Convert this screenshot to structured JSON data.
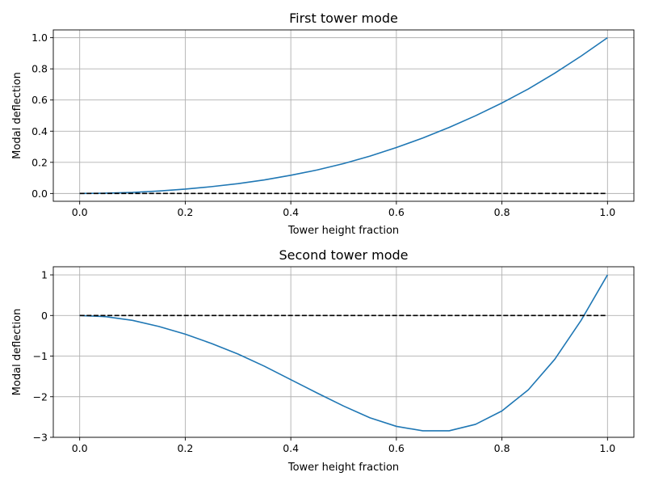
{
  "chart_data": [
    {
      "type": "line",
      "title": "First tower mode",
      "xlabel": "Tower height fraction",
      "ylabel": "Modal deflection",
      "xlim": [
        -0.05,
        1.05
      ],
      "ylim": [
        -0.05,
        1.05
      ],
      "xticks": [
        0.0,
        0.2,
        0.4,
        0.6,
        0.8,
        1.0
      ],
      "xtick_labels": [
        "0.0",
        "0.2",
        "0.4",
        "0.6",
        "0.8",
        "1.0"
      ],
      "yticks": [
        0.0,
        0.2,
        0.4,
        0.6,
        0.8,
        1.0
      ],
      "ytick_labels": [
        "0.0",
        "0.2",
        "0.4",
        "0.6",
        "0.8",
        "1.0"
      ],
      "grid": true,
      "series": [
        {
          "color": "#1f77b4",
          "style": "solid",
          "x": [
            0.0,
            0.05,
            0.1,
            0.15,
            0.2,
            0.25,
            0.3,
            0.35,
            0.4,
            0.45,
            0.5,
            0.55,
            0.6,
            0.65,
            0.7,
            0.75,
            0.8,
            0.85,
            0.9,
            0.95,
            1.0
          ],
          "y": [
            0.0,
            0.002,
            0.007,
            0.016,
            0.028,
            0.044,
            0.063,
            0.087,
            0.117,
            0.151,
            0.192,
            0.24,
            0.295,
            0.356,
            0.424,
            0.499,
            0.581,
            0.671,
            0.772,
            0.882,
            1.0
          ]
        },
        {
          "color": "#000000",
          "style": "dashed",
          "x": [
            0.0,
            1.0
          ],
          "y": [
            0.0,
            0.0
          ]
        }
      ]
    },
    {
      "type": "line",
      "title": "Second tower mode",
      "xlabel": "Tower height fraction",
      "ylabel": "Modal deflection",
      "xlim": [
        -0.05,
        1.05
      ],
      "ylim": [
        -3.0,
        1.2
      ],
      "xticks": [
        0.0,
        0.2,
        0.4,
        0.6,
        0.8,
        1.0
      ],
      "xtick_labels": [
        "0.0",
        "0.2",
        "0.4",
        "0.6",
        "0.8",
        "1.0"
      ],
      "yticks": [
        -3,
        -2,
        -1,
        0,
        1
      ],
      "ytick_labels": [
        "−3",
        "−2",
        "−1",
        "0",
        "1"
      ],
      "grid": true,
      "series": [
        {
          "color": "#1f77b4",
          "style": "solid",
          "x": [
            0.0,
            0.05,
            0.1,
            0.15,
            0.2,
            0.25,
            0.3,
            0.35,
            0.4,
            0.45,
            0.5,
            0.55,
            0.6,
            0.65,
            0.7,
            0.75,
            0.8,
            0.85,
            0.9,
            0.95,
            1.0
          ],
          "y": [
            0.0,
            -0.03,
            -0.12,
            -0.27,
            -0.46,
            -0.69,
            -0.95,
            -1.25,
            -1.58,
            -1.91,
            -2.23,
            -2.52,
            -2.73,
            -2.84,
            -2.84,
            -2.68,
            -2.35,
            -1.83,
            -1.08,
            -0.12,
            1.0
          ]
        },
        {
          "color": "#000000",
          "style": "dashed",
          "x": [
            0.0,
            1.0
          ],
          "y": [
            0.0,
            0.0
          ]
        }
      ]
    }
  ]
}
